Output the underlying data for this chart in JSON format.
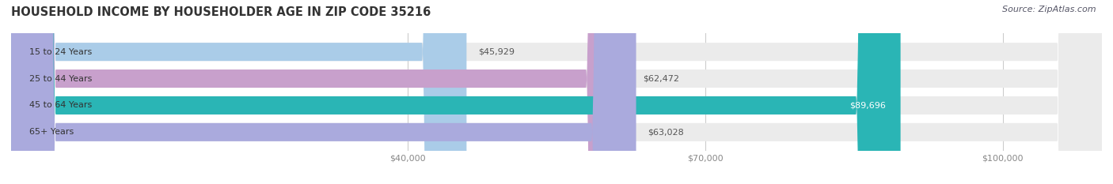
{
  "title": "HOUSEHOLD INCOME BY HOUSEHOLDER AGE IN ZIP CODE 35216",
  "source": "Source: ZipAtlas.com",
  "categories": [
    "15 to 24 Years",
    "25 to 44 Years",
    "45 to 64 Years",
    "65+ Years"
  ],
  "values": [
    45929,
    62472,
    89696,
    63028
  ],
  "bar_colors": [
    "#aacce8",
    "#c8a0cc",
    "#2ab5b5",
    "#aaaadd"
  ],
  "bar_labels": [
    "$45,929",
    "$62,472",
    "$89,696",
    "$63,028"
  ],
  "label_inside": [
    false,
    false,
    true,
    false
  ],
  "xlim_min": 0,
  "xlim_max": 110000,
  "xticks": [
    40000,
    70000,
    100000
  ],
  "xtick_labels": [
    "$40,000",
    "$70,000",
    "$100,000"
  ],
  "background_color": "#ffffff",
  "bar_bg_color": "#ebebeb",
  "title_fontsize": 10.5,
  "source_fontsize": 8,
  "tick_fontsize": 8,
  "label_fontsize": 8,
  "category_fontsize": 8,
  "bar_height": 0.68,
  "bar_gap": 1.0,
  "label_text_color_inside": "#ffffff",
  "label_text_color_outside": "#555555",
  "category_text_color": "#333333",
  "grid_color": "#cccccc",
  "tick_color": "#888888"
}
